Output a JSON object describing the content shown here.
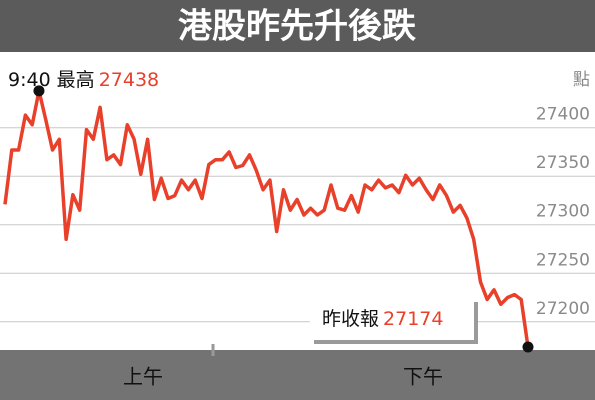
{
  "chart_data": {
    "type": "line",
    "title": "港股昨先升後跌",
    "unit_label": "點",
    "x_labels": [
      "上午",
      "下午"
    ],
    "color": "#e8402a",
    "ylim": [
      27173,
      27478
    ],
    "yticks": [
      27200,
      27250,
      27300,
      27350,
      27400
    ],
    "grid": true,
    "values": [
      27321,
      27377,
      27377,
      27413,
      27403,
      27438,
      27408,
      27377,
      27388,
      27285,
      27331,
      27315,
      27398,
      27388,
      27421,
      27367,
      27372,
      27362,
      27403,
      27388,
      27352,
      27388,
      27326,
      27348,
      27327,
      27330,
      27346,
      27336,
      27346,
      27327,
      27362,
      27367,
      27367,
      27375,
      27359,
      27361,
      27372,
      27356,
      27336,
      27346,
      27293,
      27336,
      27315,
      27326,
      27310,
      27317,
      27310,
      27315,
      27341,
      27317,
      27315,
      27330,
      27313,
      27341,
      27336,
      27346,
      27338,
      27341,
      27333,
      27351,
      27341,
      27348,
      27336,
      27326,
      27341,
      27330,
      27313,
      27320,
      27307,
      27285,
      27241,
      27223,
      27233,
      27218,
      27225,
      27228,
      27223,
      27174
    ],
    "annotations": {
      "high": {
        "time": "9:40",
        "label": "最高",
        "value": 27438
      },
      "close": {
        "label": "昨收報",
        "value": 27174
      }
    }
  }
}
